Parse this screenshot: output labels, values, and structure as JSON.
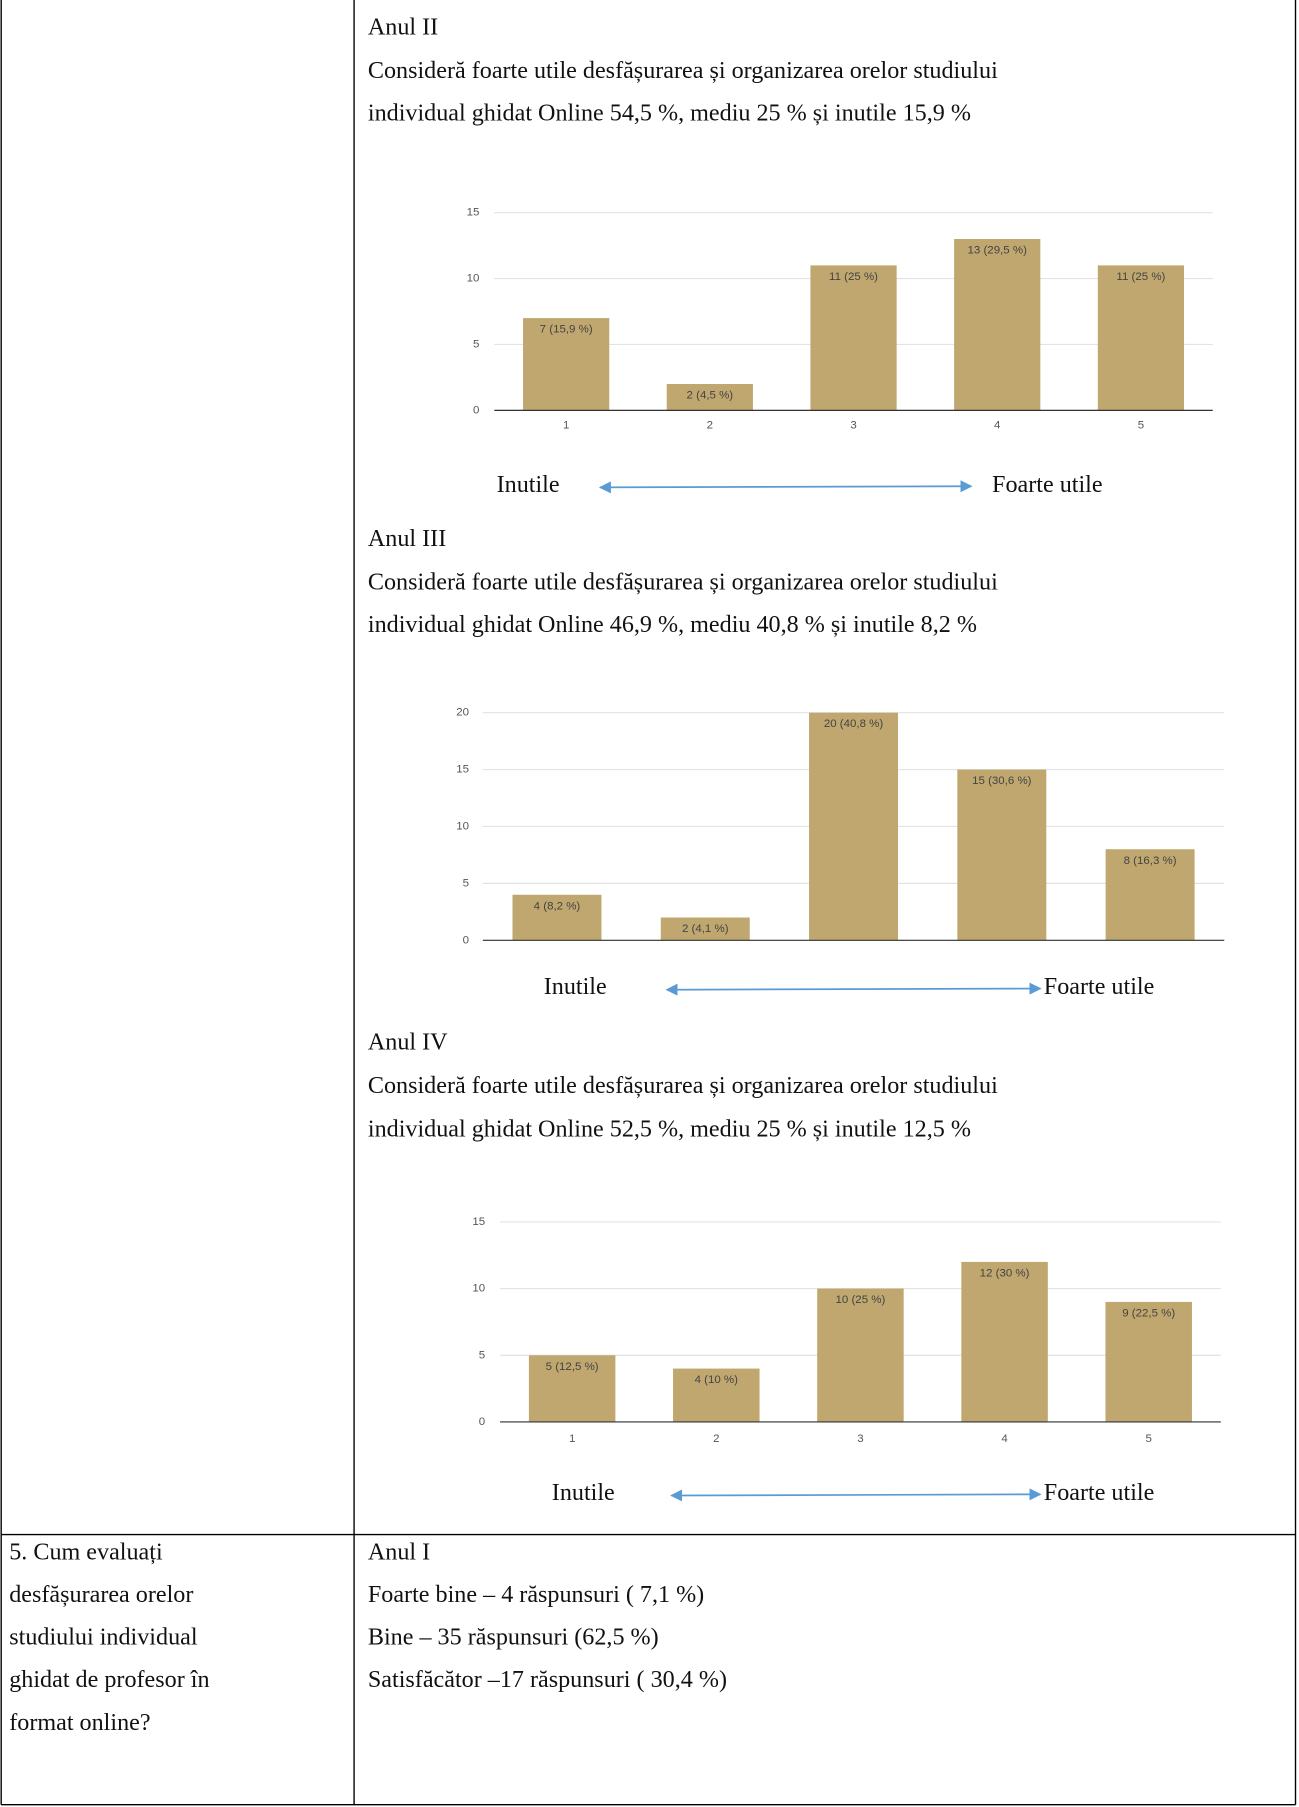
{
  "sections": [
    {
      "heading": "Anul II",
      "text": [
        "Consideră foarte utile desfășurarea și organizarea orelor studiului",
        "individual ghidat Online 54,5 %, mediu 25 % și inutile 15,9 %"
      ],
      "chart": {
        "type": "bar",
        "categories": [
          1,
          2,
          3,
          4,
          5
        ],
        "values": [
          7,
          2,
          11,
          13,
          11
        ],
        "value_labels": [
          "7 (15,9 %)",
          "2 (4,5 %)",
          "11 (25 %)",
          "13 (29,5 %)",
          "11 (25 %)"
        ],
        "ylim": [
          0,
          15
        ],
        "yticks": [
          0,
          5,
          10,
          15
        ],
        "grid": true,
        "color": "#bfa76f"
      },
      "scale": {
        "low": "Inutile",
        "high": "Foarte utile"
      }
    },
    {
      "heading": "Anul III",
      "text": [
        "Consideră foarte utile desfășurarea și organizarea orelor studiului",
        "individual ghidat Online 46,9 %, mediu 40,8 % și inutile 8,2 %"
      ],
      "chart": {
        "type": "bar",
        "values": [
          4,
          2,
          20,
          15,
          8
        ],
        "value_labels": [
          "4 (8,2 %)",
          "2 (4,1 %)",
          "20 (40,8 %)",
          "15 (30,6 %)",
          "8 (16,3 %)"
        ],
        "ylim": [
          0,
          20
        ],
        "yticks": [
          0,
          5,
          10,
          15,
          20
        ],
        "grid": true,
        "color": "#bfa76f"
      },
      "scale": {
        "low": "Inutile",
        "high": "Foarte utile"
      }
    },
    {
      "heading": "Anul IV",
      "text": [
        "Consideră foarte utile desfășurarea și organizarea orelor studiului",
        "individual ghidat Online 52,5 %, mediu 25 % și inutile 12,5 %"
      ],
      "chart": {
        "type": "bar",
        "categories": [
          1,
          2,
          3,
          4,
          5
        ],
        "values": [
          5,
          4,
          10,
          12,
          9
        ],
        "value_labels": [
          "5 (12,5 %)",
          "4 (10 %)",
          "10 (25 %)",
          "12 (30 %)",
          "9 (22,5 %)"
        ],
        "ylim": [
          0,
          15
        ],
        "yticks": [
          0,
          5,
          10,
          15
        ],
        "grid": true,
        "color": "#bfa76f"
      },
      "scale": {
        "low": "Inutile",
        "high": "Foarte utile"
      }
    }
  ],
  "question": {
    "text": [
      "5. Cum evaluați",
      "desfășurarea orelor",
      "studiului individual",
      "ghidat de profesor în",
      "format online?"
    ]
  },
  "answer": {
    "heading": "Anul I",
    "lines": [
      "Foarte bine – 4 răspunsuri ( 7,1 %)",
      "Bine – 35 răspunsuri (62,5 %)",
      "Satisfăcător –17 răspunsuri ( 30,4 %)"
    ]
  }
}
